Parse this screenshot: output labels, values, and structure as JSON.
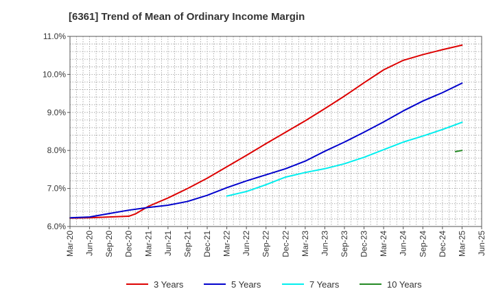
{
  "chart_data": {
    "type": "line",
    "title": "[6361]  Trend of Mean of Ordinary Income Margin",
    "xlabel": "",
    "ylabel": "",
    "ylim": [
      6.0,
      11.0
    ],
    "y_ticks": [
      "6.0%",
      "7.0%",
      "8.0%",
      "9.0%",
      "10.0%",
      "11.0%"
    ],
    "x_ticks": [
      "Mar-20",
      "Jun-20",
      "Sep-20",
      "Dec-20",
      "Mar-21",
      "Jun-21",
      "Sep-21",
      "Dec-21",
      "Mar-22",
      "Jun-22",
      "Sep-22",
      "Dec-22",
      "Mar-23",
      "Jun-23",
      "Sep-23",
      "Dec-23",
      "Mar-24",
      "Jun-24",
      "Sep-24",
      "Dec-24",
      "Mar-25",
      "Jun-25"
    ],
    "grid": true,
    "legend_position": "bottom",
    "series": [
      {
        "name": "3 Years",
        "color": "#dd0000",
        "points": [
          [
            "Mar-20",
            6.22
          ],
          [
            "Jun-20",
            6.23
          ],
          [
            "Sep-20",
            6.25
          ],
          [
            "Dec-20",
            6.27
          ],
          [
            "Jan-21",
            6.33
          ],
          [
            "Mar-21",
            6.53
          ],
          [
            "Jun-21",
            6.75
          ],
          [
            "Sep-21",
            7.0
          ],
          [
            "Dec-21",
            7.27
          ],
          [
            "Mar-22",
            7.57
          ],
          [
            "Jun-22",
            7.87
          ],
          [
            "Sep-22",
            8.18
          ],
          [
            "Dec-22",
            8.48
          ],
          [
            "Mar-23",
            8.78
          ],
          [
            "Jun-23",
            9.1
          ],
          [
            "Sep-23",
            9.43
          ],
          [
            "Dec-23",
            9.78
          ],
          [
            "Mar-24",
            10.12
          ],
          [
            "Jun-24",
            10.37
          ],
          [
            "Sep-24",
            10.52
          ],
          [
            "Dec-24",
            10.65
          ],
          [
            "Mar-25",
            10.77
          ]
        ]
      },
      {
        "name": "5 Years",
        "color": "#0000cc",
        "points": [
          [
            "Mar-20",
            6.23
          ],
          [
            "Jun-20",
            6.25
          ],
          [
            "Sep-20",
            6.34
          ],
          [
            "Dec-20",
            6.43
          ],
          [
            "Mar-21",
            6.5
          ],
          [
            "Jun-21",
            6.56
          ],
          [
            "Sep-21",
            6.66
          ],
          [
            "Dec-21",
            6.82
          ],
          [
            "Mar-22",
            7.02
          ],
          [
            "Jun-22",
            7.2
          ],
          [
            "Sep-22",
            7.36
          ],
          [
            "Dec-22",
            7.52
          ],
          [
            "Mar-23",
            7.72
          ],
          [
            "Jun-23",
            7.98
          ],
          [
            "Sep-23",
            8.22
          ],
          [
            "Dec-23",
            8.48
          ],
          [
            "Mar-24",
            8.75
          ],
          [
            "Jun-24",
            9.04
          ],
          [
            "Sep-24",
            9.3
          ],
          [
            "Dec-24",
            9.52
          ],
          [
            "Mar-25",
            9.77
          ]
        ]
      },
      {
        "name": "7 Years",
        "color": "#00eeee",
        "points": [
          [
            "Mar-22",
            6.8
          ],
          [
            "Jun-22",
            6.92
          ],
          [
            "Sep-22",
            7.1
          ],
          [
            "Dec-22",
            7.3
          ],
          [
            "Mar-23",
            7.42
          ],
          [
            "Jun-23",
            7.52
          ],
          [
            "Sep-23",
            7.65
          ],
          [
            "Dec-23",
            7.82
          ],
          [
            "Mar-24",
            8.02
          ],
          [
            "Jun-24",
            8.22
          ],
          [
            "Sep-24",
            8.38
          ],
          [
            "Dec-24",
            8.55
          ],
          [
            "Mar-25",
            8.74
          ]
        ]
      },
      {
        "name": "10 Years",
        "color": "#228822",
        "points": [
          [
            "Feb-25",
            7.97
          ],
          [
            "Mar-25",
            8.0
          ]
        ]
      }
    ]
  }
}
